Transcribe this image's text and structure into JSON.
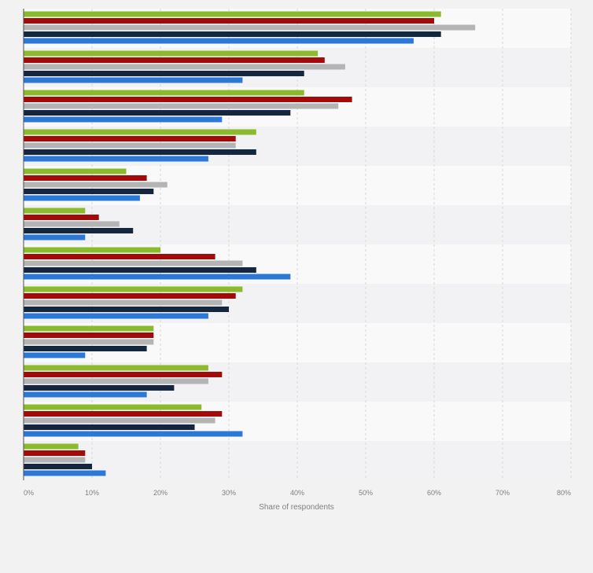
{
  "chart_data": {
    "type": "bar",
    "orientation": "horizontal",
    "xlabel": "Share of respondents",
    "ylabel": "",
    "xlim": [
      0,
      80
    ],
    "x_ticks": [
      "0%",
      "10%",
      "20%",
      "30%",
      "40%",
      "50%",
      "60%",
      "70%",
      "80%"
    ],
    "grid": true,
    "categories": [
      "",
      "",
      "",
      "",
      "",
      "",
      "",
      "",
      "",
      "",
      "",
      ""
    ],
    "series": [
      {
        "color": "#8bba2c",
        "values": [
          61,
          43,
          41,
          34,
          15,
          9,
          20,
          32,
          19,
          27,
          26,
          8
        ]
      },
      {
        "color": "#a30b0b",
        "values": [
          60,
          44,
          48,
          31,
          18,
          11,
          28,
          31,
          19,
          29,
          29,
          9
        ]
      },
      {
        "color": "#b4b4b4",
        "values": [
          66,
          47,
          46,
          31,
          21,
          14,
          32,
          29,
          19,
          27,
          28,
          9
        ]
      },
      {
        "color": "#14273e",
        "values": [
          61,
          41,
          39,
          34,
          19,
          16,
          34,
          30,
          18,
          22,
          25,
          10
        ]
      },
      {
        "color": "#2c78d6",
        "values": [
          57,
          32,
          29,
          27,
          17,
          9,
          39,
          27,
          9,
          18,
          32,
          12
        ]
      }
    ]
  },
  "colors": {
    "background": "#f2f2f2",
    "band_light": "#f9f9fa",
    "band_dark": "#f2f2f4",
    "gridline": "#d8d8d8",
    "axis": "#4d4d4d",
    "tick_text": "#808080"
  }
}
